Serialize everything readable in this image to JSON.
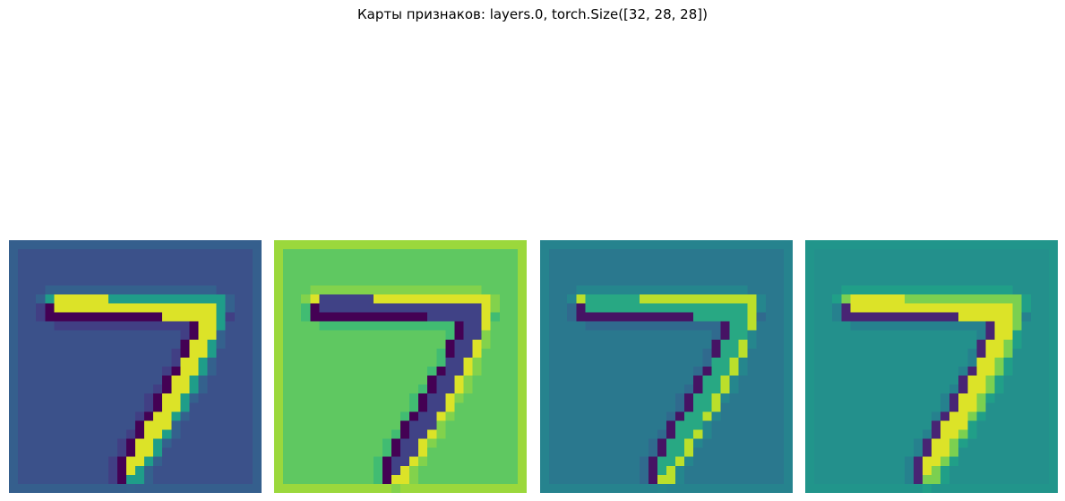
{
  "title": "Карты признаков: layers.0, torch.Size([32, 28, 28])",
  "chart_data": {
    "type": "heatmap",
    "title": "Карты признаков: layers.0, torch.Size([32, 28, 28])",
    "layer": "layers.0",
    "tensor_size": [
      32,
      28,
      28
    ],
    "maps_shown": 4,
    "grid_size": [
      28,
      28
    ],
    "colormap": "viridis",
    "axes_visible": false,
    "maps": [
      {
        "background": 0.25,
        "edge": 0.3,
        "stroke": 0.95,
        "side_a": 0.0,
        "side_b": 0.55
      },
      {
        "background": 0.75,
        "edge": 0.85,
        "stroke": 0.2,
        "side_a": 0.0,
        "side_b": 0.95
      },
      {
        "background": 0.4,
        "edge": 0.45,
        "stroke": 0.6,
        "side_a": 0.05,
        "side_b": 0.9
      },
      {
        "background": 0.5,
        "edge": 0.52,
        "stroke": 0.95,
        "side_a": 0.1,
        "side_b": 0.8
      }
    ]
  }
}
